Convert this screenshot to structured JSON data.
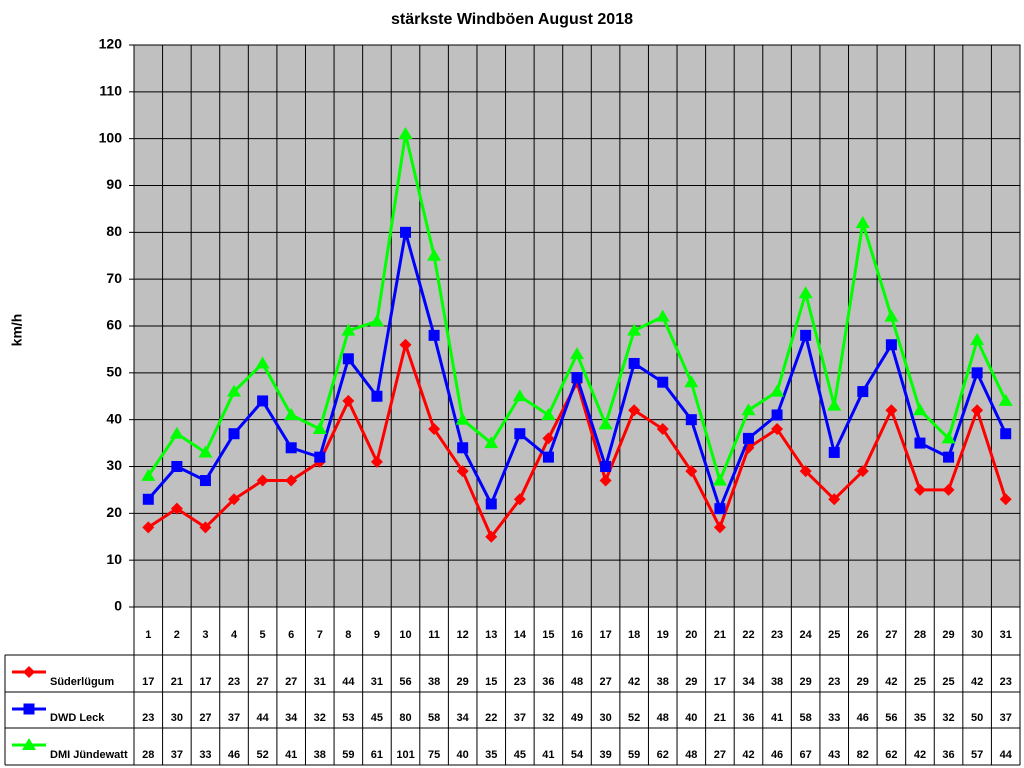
{
  "chart_data": {
    "type": "line",
    "title": "stärkste Windböen August 2018",
    "y_label": "km/h",
    "categories": [
      "1",
      "2",
      "3",
      "4",
      "5",
      "6",
      "7",
      "8",
      "9",
      "10",
      "11",
      "12",
      "13",
      "14",
      "15",
      "16",
      "17",
      "18",
      "19",
      "20",
      "21",
      "22",
      "23",
      "24",
      "25",
      "26",
      "27",
      "28",
      "29",
      "30",
      "31"
    ],
    "series": [
      {
        "name": "Süderlügum",
        "color": "#ff0000",
        "marker": "diamond",
        "values": [
          17,
          21,
          17,
          23,
          27,
          27,
          31,
          44,
          31,
          56,
          38,
          29,
          15,
          23,
          36,
          48,
          27,
          42,
          38,
          29,
          17,
          34,
          38,
          29,
          23,
          29,
          42,
          25,
          25,
          42,
          23
        ]
      },
      {
        "name": "DWD Leck",
        "color": "#0000ff",
        "marker": "square",
        "values": [
          23,
          30,
          27,
          37,
          44,
          34,
          32,
          53,
          45,
          80,
          58,
          34,
          22,
          37,
          32,
          49,
          30,
          52,
          48,
          40,
          21,
          36,
          41,
          58,
          33,
          46,
          56,
          35,
          32,
          50,
          37
        ]
      },
      {
        "name": "DMI Jündewatt",
        "color": "#00ff00",
        "marker": "triangle",
        "values": [
          28,
          37,
          33,
          46,
          52,
          41,
          38,
          59,
          61,
          101,
          75,
          40,
          35,
          45,
          41,
          54,
          39,
          59,
          62,
          48,
          27,
          42,
          46,
          67,
          43,
          82,
          62,
          42,
          36,
          57,
          44
        ]
      }
    ],
    "ylim": [
      0,
      120
    ],
    "yticks": [
      0,
      10,
      20,
      30,
      40,
      50,
      60,
      70,
      80,
      90,
      100,
      110,
      120
    ],
    "grid": true,
    "plot_background": "#c0c0c0"
  }
}
